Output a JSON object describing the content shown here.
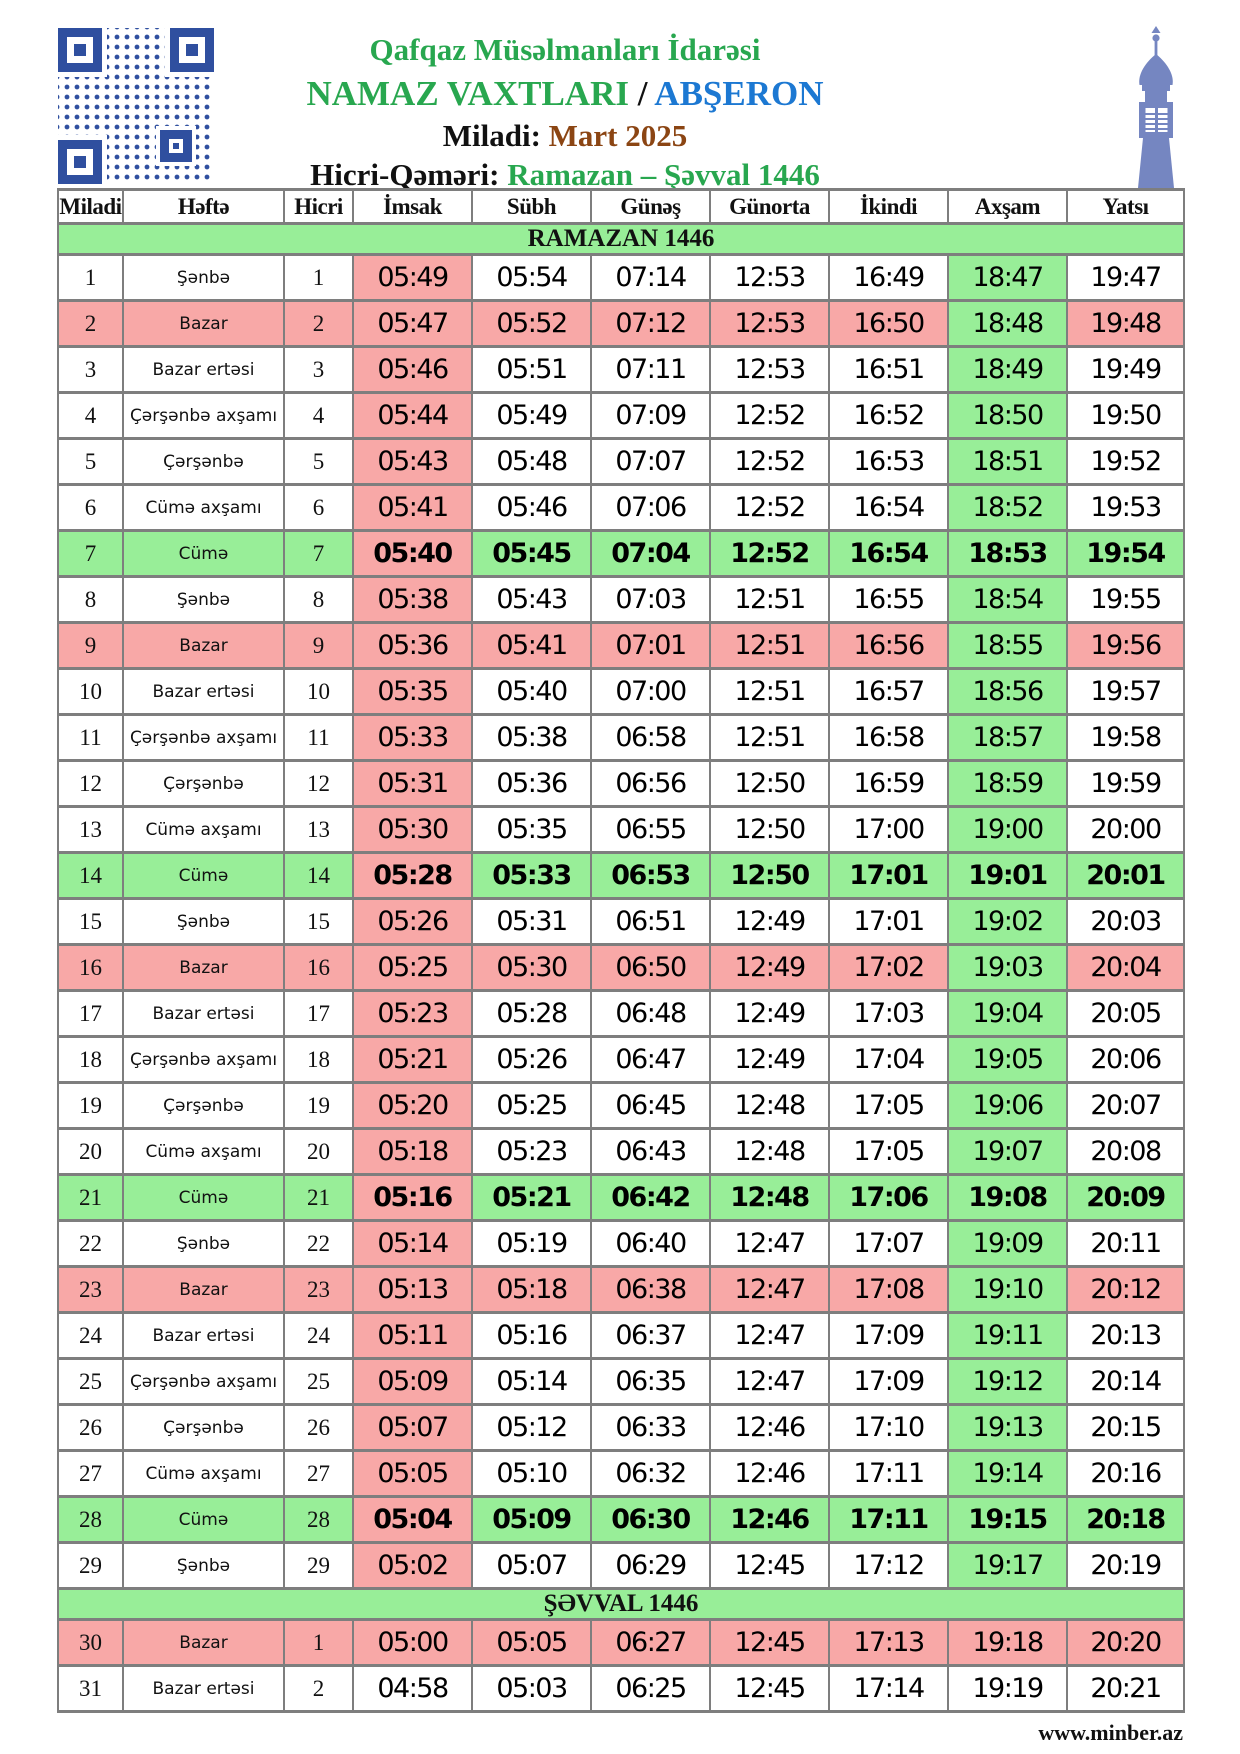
{
  "header": {
    "org": "Qafqaz Müsəlmanları İdarəsi",
    "doc_title": "NAMAZ VAXTLARI",
    "separator": "/",
    "region": "ABŞERON",
    "miladi_label": "Miladi:",
    "miladi_value": "Mart 2025",
    "hicri_label": "Hicri-Qəməri:",
    "hicri_value": "Ramazan – Şəvval 1446"
  },
  "icons": {
    "qr_code": "qr-code",
    "minaret": "minaret-icon"
  },
  "colors": {
    "title_green": "#28a74f",
    "region_blue": "#1c78d2",
    "month_brown": "#8b4513",
    "cell_pink": "#f8a8a7",
    "cell_green": "#98ee98",
    "qr_blue": "#2f4f9f",
    "minaret_blue": "#7586c1",
    "border_gray": "#7e7e7e"
  },
  "table": {
    "columns": [
      "Miladi",
      "Həftə",
      "Hicri",
      "İmsak",
      "Sübh",
      "Günəş",
      "Günorta",
      "İkindi",
      "Axşam",
      "Yatsı"
    ],
    "sections": [
      {
        "title": "RAMAZAN 1446",
        "column_highlight": true,
        "rows": [
          {
            "miladi": "1",
            "weekday": "Şənbə",
            "hicri": "1",
            "times": [
              "05:49",
              "05:54",
              "07:14",
              "12:53",
              "16:49",
              "18:47",
              "19:47"
            ],
            "kind": "normal"
          },
          {
            "miladi": "2",
            "weekday": "Bazar",
            "hicri": "2",
            "times": [
              "05:47",
              "05:52",
              "07:12",
              "12:53",
              "16:50",
              "18:48",
              "19:48"
            ],
            "kind": "sunday"
          },
          {
            "miladi": "3",
            "weekday": "Bazar ertəsi",
            "hicri": "3",
            "times": [
              "05:46",
              "05:51",
              "07:11",
              "12:53",
              "16:51",
              "18:49",
              "19:49"
            ],
            "kind": "normal"
          },
          {
            "miladi": "4",
            "weekday": "Çərşənbə axşamı",
            "hicri": "4",
            "times": [
              "05:44",
              "05:49",
              "07:09",
              "12:52",
              "16:52",
              "18:50",
              "19:50"
            ],
            "kind": "normal"
          },
          {
            "miladi": "5",
            "weekday": "Çərşənbə",
            "hicri": "5",
            "times": [
              "05:43",
              "05:48",
              "07:07",
              "12:52",
              "16:53",
              "18:51",
              "19:52"
            ],
            "kind": "normal"
          },
          {
            "miladi": "6",
            "weekday": "Cümə axşamı",
            "hicri": "6",
            "times": [
              "05:41",
              "05:46",
              "07:06",
              "12:52",
              "16:54",
              "18:52",
              "19:53"
            ],
            "kind": "normal"
          },
          {
            "miladi": "7",
            "weekday": "Cümə",
            "hicri": "7",
            "times": [
              "05:40",
              "05:45",
              "07:04",
              "12:52",
              "16:54",
              "18:53",
              "19:54"
            ],
            "kind": "friday"
          },
          {
            "miladi": "8",
            "weekday": "Şənbə",
            "hicri": "8",
            "times": [
              "05:38",
              "05:43",
              "07:03",
              "12:51",
              "16:55",
              "18:54",
              "19:55"
            ],
            "kind": "normal"
          },
          {
            "miladi": "9",
            "weekday": "Bazar",
            "hicri": "9",
            "times": [
              "05:36",
              "05:41",
              "07:01",
              "12:51",
              "16:56",
              "18:55",
              "19:56"
            ],
            "kind": "sunday"
          },
          {
            "miladi": "10",
            "weekday": "Bazar ertəsi",
            "hicri": "10",
            "times": [
              "05:35",
              "05:40",
              "07:00",
              "12:51",
              "16:57",
              "18:56",
              "19:57"
            ],
            "kind": "normal"
          },
          {
            "miladi": "11",
            "weekday": "Çərşənbə axşamı",
            "hicri": "11",
            "times": [
              "05:33",
              "05:38",
              "06:58",
              "12:51",
              "16:58",
              "18:57",
              "19:58"
            ],
            "kind": "normal"
          },
          {
            "miladi": "12",
            "weekday": "Çərşənbə",
            "hicri": "12",
            "times": [
              "05:31",
              "05:36",
              "06:56",
              "12:50",
              "16:59",
              "18:59",
              "19:59"
            ],
            "kind": "normal"
          },
          {
            "miladi": "13",
            "weekday": "Cümə axşamı",
            "hicri": "13",
            "times": [
              "05:30",
              "05:35",
              "06:55",
              "12:50",
              "17:00",
              "19:00",
              "20:00"
            ],
            "kind": "normal"
          },
          {
            "miladi": "14",
            "weekday": "Cümə",
            "hicri": "14",
            "times": [
              "05:28",
              "05:33",
              "06:53",
              "12:50",
              "17:01",
              "19:01",
              "20:01"
            ],
            "kind": "friday"
          },
          {
            "miladi": "15",
            "weekday": "Şənbə",
            "hicri": "15",
            "times": [
              "05:26",
              "05:31",
              "06:51",
              "12:49",
              "17:01",
              "19:02",
              "20:03"
            ],
            "kind": "normal"
          },
          {
            "miladi": "16",
            "weekday": "Bazar",
            "hicri": "16",
            "times": [
              "05:25",
              "05:30",
              "06:50",
              "12:49",
              "17:02",
              "19:03",
              "20:04"
            ],
            "kind": "sunday"
          },
          {
            "miladi": "17",
            "weekday": "Bazar ertəsi",
            "hicri": "17",
            "times": [
              "05:23",
              "05:28",
              "06:48",
              "12:49",
              "17:03",
              "19:04",
              "20:05"
            ],
            "kind": "normal"
          },
          {
            "miladi": "18",
            "weekday": "Çərşənbə axşamı",
            "hicri": "18",
            "times": [
              "05:21",
              "05:26",
              "06:47",
              "12:49",
              "17:04",
              "19:05",
              "20:06"
            ],
            "kind": "normal"
          },
          {
            "miladi": "19",
            "weekday": "Çərşənbə",
            "hicri": "19",
            "times": [
              "05:20",
              "05:25",
              "06:45",
              "12:48",
              "17:05",
              "19:06",
              "20:07"
            ],
            "kind": "normal"
          },
          {
            "miladi": "20",
            "weekday": "Cümə axşamı",
            "hicri": "20",
            "times": [
              "05:18",
              "05:23",
              "06:43",
              "12:48",
              "17:05",
              "19:07",
              "20:08"
            ],
            "kind": "normal"
          },
          {
            "miladi": "21",
            "weekday": "Cümə",
            "hicri": "21",
            "times": [
              "05:16",
              "05:21",
              "06:42",
              "12:48",
              "17:06",
              "19:08",
              "20:09"
            ],
            "kind": "friday"
          },
          {
            "miladi": "22",
            "weekday": "Şənbə",
            "hicri": "22",
            "times": [
              "05:14",
              "05:19",
              "06:40",
              "12:47",
              "17:07",
              "19:09",
              "20:11"
            ],
            "kind": "normal"
          },
          {
            "miladi": "23",
            "weekday": "Bazar",
            "hicri": "23",
            "times": [
              "05:13",
              "05:18",
              "06:38",
              "12:47",
              "17:08",
              "19:10",
              "20:12"
            ],
            "kind": "sunday"
          },
          {
            "miladi": "24",
            "weekday": "Bazar ertəsi",
            "hicri": "24",
            "times": [
              "05:11",
              "05:16",
              "06:37",
              "12:47",
              "17:09",
              "19:11",
              "20:13"
            ],
            "kind": "normal"
          },
          {
            "miladi": "25",
            "weekday": "Çərşənbə axşamı",
            "hicri": "25",
            "times": [
              "05:09",
              "05:14",
              "06:35",
              "12:47",
              "17:09",
              "19:12",
              "20:14"
            ],
            "kind": "normal"
          },
          {
            "miladi": "26",
            "weekday": "Çərşənbə",
            "hicri": "26",
            "times": [
              "05:07",
              "05:12",
              "06:33",
              "12:46",
              "17:10",
              "19:13",
              "20:15"
            ],
            "kind": "normal"
          },
          {
            "miladi": "27",
            "weekday": "Cümə axşamı",
            "hicri": "27",
            "times": [
              "05:05",
              "05:10",
              "06:32",
              "12:46",
              "17:11",
              "19:14",
              "20:16"
            ],
            "kind": "normal"
          },
          {
            "miladi": "28",
            "weekday": "Cümə",
            "hicri": "28",
            "times": [
              "05:04",
              "05:09",
              "06:30",
              "12:46",
              "17:11",
              "19:15",
              "20:18"
            ],
            "kind": "friday"
          },
          {
            "miladi": "29",
            "weekday": "Şənbə",
            "hicri": "29",
            "times": [
              "05:02",
              "05:07",
              "06:29",
              "12:45",
              "17:12",
              "19:17",
              "20:19"
            ],
            "kind": "normal"
          }
        ]
      },
      {
        "title": "ŞƏVVAL 1446",
        "column_highlight": false,
        "rows": [
          {
            "miladi": "30",
            "weekday": "Bazar",
            "hicri": "1",
            "times": [
              "05:00",
              "05:05",
              "06:27",
              "12:45",
              "17:13",
              "19:18",
              "20:20"
            ],
            "kind": "sunday"
          },
          {
            "miladi": "31",
            "weekday": "Bazar ertəsi",
            "hicri": "2",
            "times": [
              "04:58",
              "05:03",
              "06:25",
              "12:45",
              "17:14",
              "19:19",
              "20:21"
            ],
            "kind": "normal"
          }
        ]
      }
    ]
  },
  "footer": {
    "website": "www.minber.az"
  }
}
